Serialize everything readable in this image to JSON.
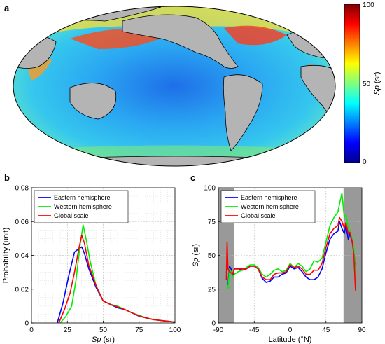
{
  "figure": {
    "panel_a_letter": "a",
    "panel_b_letter": "b",
    "panel_c_letter": "c"
  },
  "map": {
    "colorbar_label_prefix": "Sp",
    "colorbar_label_suffix": " (sr)",
    "colorbar_ticks": [
      "100",
      "50",
      "0"
    ],
    "colormap": [
      "#00008f",
      "#0000ff",
      "#0080ff",
      "#00ffff",
      "#80ff80",
      "#ffff00",
      "#ff8000",
      "#ff0000",
      "#800000"
    ],
    "land_color": "#b4b4b4",
    "ocean_base_color": "#35b8f0"
  },
  "chart_data": [
    {
      "type": "line",
      "xlabel_prefix": "Sp",
      "xlabel_suffix": " (sr)",
      "ylabel": "Probability (unit)",
      "xlim": [
        0,
        100
      ],
      "ylim": [
        0,
        0.08
      ],
      "x_ticks": [
        "0",
        "25",
        "50",
        "75",
        "100"
      ],
      "y_ticks": [
        "0",
        "0.02",
        "0.04",
        "0.06",
        "0.08"
      ],
      "grid": true,
      "legend_position": "top-left",
      "series": [
        {
          "name": "Eastern hemisphere",
          "color": "#0000ff",
          "x": [
            18,
            22,
            26,
            30,
            33,
            35,
            37,
            40,
            45,
            50,
            55,
            60,
            65,
            70,
            75,
            80,
            85,
            90,
            95,
            100
          ],
          "y": [
            0,
            0.012,
            0.028,
            0.042,
            0.044,
            0.045,
            0.041,
            0.032,
            0.021,
            0.013,
            0.011,
            0.009,
            0.008,
            0.006,
            0.004,
            0.003,
            0.002,
            0.0015,
            0.001,
            0.0005
          ]
        },
        {
          "name": "Western hemisphere",
          "color": "#00ee00",
          "x": [
            20,
            24,
            28,
            31,
            34,
            36,
            38,
            41,
            45,
            50,
            55,
            60,
            65,
            70,
            75,
            80,
            85,
            90,
            95,
            100
          ],
          "y": [
            0,
            0.004,
            0.01,
            0.025,
            0.047,
            0.058,
            0.05,
            0.036,
            0.022,
            0.013,
            0.011,
            0.01,
            0.008,
            0.006,
            0.0045,
            0.003,
            0.002,
            0.0015,
            0.001,
            0.0005
          ]
        },
        {
          "name": "Global scale",
          "color": "#ff0000",
          "x": [
            19,
            23,
            27,
            30,
            33,
            35,
            37,
            40,
            45,
            50,
            55,
            60,
            65,
            70,
            75,
            80,
            85,
            90,
            95,
            100
          ],
          "y": [
            0,
            0.008,
            0.018,
            0.03,
            0.044,
            0.052,
            0.047,
            0.034,
            0.022,
            0.013,
            0.011,
            0.0095,
            0.008,
            0.006,
            0.0042,
            0.003,
            0.002,
            0.0015,
            0.001,
            0.0005
          ]
        }
      ]
    },
    {
      "type": "line",
      "xlabel": "Latitude (°N)",
      "ylabel_prefix": "Sp",
      "ylabel_suffix": " (sr)",
      "xlim": [
        -90,
        90
      ],
      "ylim": [
        0,
        100
      ],
      "x_ticks": [
        "-90",
        "-45",
        "0",
        "45",
        "90"
      ],
      "y_ticks": [
        "0",
        "25",
        "50",
        "75",
        "100"
      ],
      "grid": true,
      "legend_position": "top-left",
      "shaded_regions": [
        [
          -90,
          -70
        ],
        [
          67,
          90
        ]
      ],
      "shade_color": "#999999",
      "series": [
        {
          "name": "Eastern hemisphere",
          "color": "#0000ff",
          "x": [
            -78,
            -76,
            -74,
            -72,
            -70,
            -65,
            -60,
            -55,
            -50,
            -45,
            -40,
            -35,
            -30,
            -25,
            -20,
            -15,
            -10,
            -5,
            0,
            5,
            10,
            15,
            20,
            25,
            30,
            35,
            40,
            45,
            50,
            55,
            60,
            62,
            65,
            68,
            70,
            73,
            75,
            78,
            80,
            82
          ],
          "y": [
            28,
            42,
            40,
            35,
            40,
            40,
            39,
            40,
            42,
            42,
            40,
            33,
            30,
            31,
            34,
            34,
            36,
            37,
            42,
            40,
            41,
            38,
            34,
            32,
            32,
            34,
            40,
            52,
            62,
            66,
            68,
            75,
            70,
            66,
            72,
            62,
            66,
            60,
            52,
            40
          ]
        },
        {
          "name": "Western hemisphere",
          "color": "#00ee00",
          "x": [
            -78,
            -76,
            -74,
            -72,
            -70,
            -65,
            -60,
            -55,
            -50,
            -45,
            -40,
            -35,
            -30,
            -25,
            -20,
            -15,
            -10,
            -5,
            0,
            5,
            10,
            15,
            20,
            25,
            30,
            35,
            40,
            45,
            50,
            55,
            60,
            62,
            65,
            68,
            70,
            73,
            75,
            78,
            80,
            82
          ],
          "y": [
            25,
            40,
            38,
            34,
            36,
            38,
            39,
            41,
            43,
            43,
            41,
            36,
            34,
            36,
            39,
            40,
            38,
            39,
            44,
            41,
            44,
            42,
            38,
            40,
            46,
            45,
            48,
            60,
            72,
            78,
            82,
            88,
            96,
            78,
            80,
            70,
            68,
            62,
            55,
            35
          ]
        },
        {
          "name": "Global scale",
          "color": "#ff0000",
          "x": [
            -80,
            -79,
            -78,
            -76,
            -74,
            -72,
            -70,
            -65,
            -60,
            -55,
            -50,
            -45,
            -40,
            -35,
            -30,
            -25,
            -20,
            -15,
            -10,
            -5,
            0,
            5,
            10,
            15,
            20,
            25,
            30,
            35,
            40,
            45,
            50,
            55,
            60,
            62,
            65,
            68,
            70,
            73,
            75,
            78,
            80,
            82
          ],
          "y": [
            32,
            60,
            40,
            38,
            37,
            36,
            40,
            40,
            40,
            40,
            42,
            42,
            40,
            34,
            32,
            32,
            36,
            37,
            37,
            38,
            43,
            41,
            42,
            40,
            36,
            36,
            39,
            39,
            44,
            56,
            66,
            70,
            72,
            78,
            75,
            70,
            74,
            66,
            67,
            60,
            50,
            24
          ]
        }
      ]
    }
  ]
}
